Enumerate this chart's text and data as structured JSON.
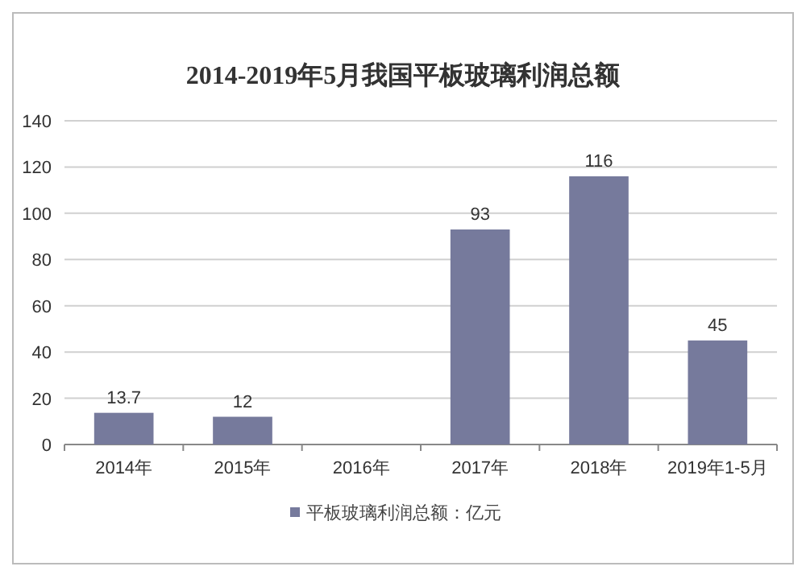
{
  "chart_data": {
    "type": "bar",
    "title": "2014-2019年5月我国平板玻璃利润总额",
    "categories": [
      "2014年",
      "2015年",
      "2016年",
      "2017年",
      "2018年",
      "2019年1-5月"
    ],
    "series": [
      {
        "name": "平板玻璃利润总额：亿元",
        "color": "#767a9c",
        "values": [
          13.7,
          12,
          null,
          93,
          116,
          45
        ]
      }
    ],
    "ylim": [
      0,
      140
    ],
    "yticks": [
      0,
      20,
      40,
      60,
      80,
      100,
      120,
      140
    ],
    "grid": "y",
    "legend": "bottom",
    "data_labels": true
  }
}
